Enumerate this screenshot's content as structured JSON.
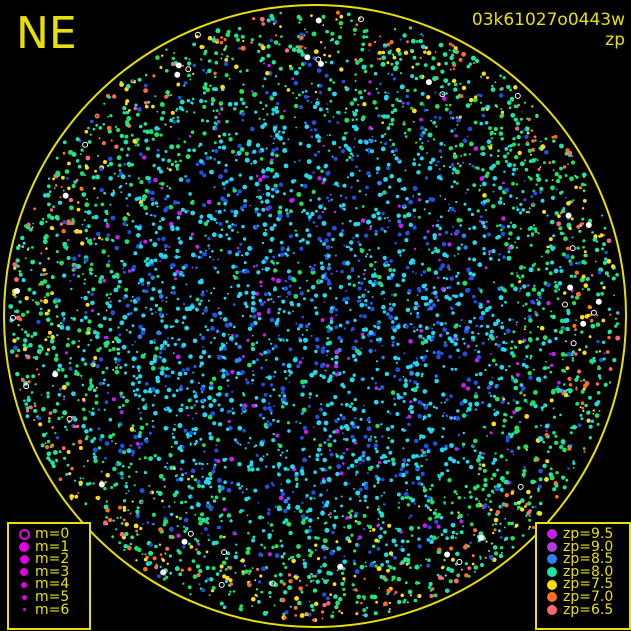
{
  "direction_label": "NE",
  "image_id": "03k61027o0443w",
  "mode_label": "zp",
  "horizon_color": "#e8e000",
  "magnitude_legend": [
    {
      "label": "m=0",
      "style": "ring"
    },
    {
      "label": "m=1"
    },
    {
      "label": "m=2"
    },
    {
      "label": "m=3"
    },
    {
      "label": "m=4"
    },
    {
      "label": "m=5"
    },
    {
      "label": "m=6"
    }
  ],
  "zp_legend": [
    {
      "label": "zp=9.5",
      "color": "#c81ef0"
    },
    {
      "label": "zp=9.0",
      "color": "#b43cdc"
    },
    {
      "label": "zp=8.5",
      "color": "#2a82f5"
    },
    {
      "label": "zp=8.0",
      "color": "#1ee6a0"
    },
    {
      "label": "zp=7.5",
      "color": "#ffdc14"
    },
    {
      "label": "zp=7.0",
      "color": "#ff6e1e"
    },
    {
      "label": "zp=6.5",
      "color": "#ff6478"
    }
  ],
  "star_colors": {
    "cyan": "#20d8f0",
    "blue": "#2050e0",
    "green": "#20e060",
    "magenta": "#c020f0",
    "white": "#ffffff"
  }
}
